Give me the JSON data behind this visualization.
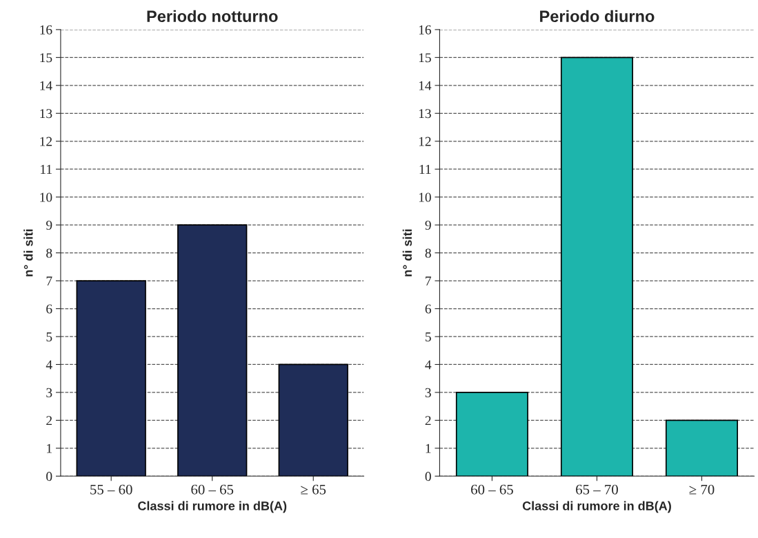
{
  "chart_data": [
    {
      "type": "bar",
      "title": "Periodo notturno",
      "xlabel": "Classi di rumore in dB(A)",
      "ylabel": "n° di siti",
      "categories": [
        "55 – 60",
        "60 – 65",
        "≥ 65"
      ],
      "values": [
        7,
        9,
        4
      ],
      "color": "#1f2d58",
      "ylim": [
        0,
        16
      ],
      "yticks": [
        0,
        1,
        2,
        3,
        4,
        5,
        6,
        7,
        8,
        9,
        10,
        11,
        12,
        13,
        14,
        15,
        16
      ],
      "grid": "y",
      "line_style": "dashed",
      "legend": false
    },
    {
      "type": "bar",
      "title": "Periodo diurno",
      "xlabel": "Classi di rumore in dB(A)",
      "ylabel": "n° di siti",
      "categories": [
        "60 – 65",
        "65 – 70",
        "≥ 70"
      ],
      "values": [
        3,
        15,
        2
      ],
      "color": "#1db5ac",
      "ylim": [
        0,
        16
      ],
      "yticks": [
        0,
        1,
        2,
        3,
        4,
        5,
        6,
        7,
        8,
        9,
        10,
        11,
        12,
        13,
        14,
        15,
        16
      ],
      "grid": "y",
      "line_style": "dashed",
      "legend": false
    }
  ]
}
